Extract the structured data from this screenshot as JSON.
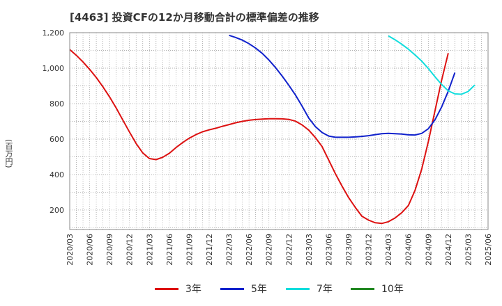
{
  "title": "[4463]  投資CFの12か月移動合計の標準偏差の推移",
  "chart_data": {
    "type": "line",
    "ylabel": "(百万円)",
    "xlabel": "",
    "ylim": [
      90,
      1200
    ],
    "xrange": [
      "2020-03",
      "2025-06"
    ],
    "yticks": [
      {
        "value": 200,
        "label": "200"
      },
      {
        "value": 400,
        "label": "400"
      },
      {
        "value": 600,
        "label": "600"
      },
      {
        "value": 800,
        "label": "800"
      },
      {
        "value": 1000,
        "label": "1,000"
      },
      {
        "value": 1200,
        "label": "1,200"
      }
    ],
    "xticks": [
      "2020/03",
      "2020/06",
      "2020/09",
      "2020/12",
      "2021/03",
      "2021/06",
      "2021/09",
      "2021/12",
      "2022/03",
      "2022/06",
      "2022/09",
      "2022/12",
      "2023/03",
      "2023/06",
      "2023/09",
      "2023/12",
      "2024/03",
      "2024/06",
      "2024/09",
      "2024/12",
      "2025/03",
      "2025/06"
    ],
    "grid": true,
    "legend_position": "bottom",
    "series": [
      {
        "name": "3年",
        "color": "#dd1111",
        "points": [
          [
            "2020-03",
            1105
          ],
          [
            "2020-04",
            1072
          ],
          [
            "2020-05",
            1035
          ],
          [
            "2020-06",
            993
          ],
          [
            "2020-07",
            947
          ],
          [
            "2020-08",
            895
          ],
          [
            "2020-09",
            838
          ],
          [
            "2020-10",
            775
          ],
          [
            "2020-11",
            707
          ],
          [
            "2020-12",
            640
          ],
          [
            "2021-01",
            575
          ],
          [
            "2021-02",
            522
          ],
          [
            "2021-03",
            490
          ],
          [
            "2021-04",
            484
          ],
          [
            "2021-05",
            497
          ],
          [
            "2021-06",
            520
          ],
          [
            "2021-07",
            552
          ],
          [
            "2021-08",
            580
          ],
          [
            "2021-09",
            605
          ],
          [
            "2021-10",
            625
          ],
          [
            "2021-11",
            641
          ],
          [
            "2021-12",
            652
          ],
          [
            "2022-01",
            661
          ],
          [
            "2022-02",
            672
          ],
          [
            "2022-03",
            682
          ],
          [
            "2022-04",
            692
          ],
          [
            "2022-05",
            700
          ],
          [
            "2022-06",
            706
          ],
          [
            "2022-07",
            710
          ],
          [
            "2022-08",
            713
          ],
          [
            "2022-09",
            715
          ],
          [
            "2022-10",
            715
          ],
          [
            "2022-11",
            714
          ],
          [
            "2022-12",
            711
          ],
          [
            "2023-01",
            701
          ],
          [
            "2023-02",
            680
          ],
          [
            "2023-03",
            650
          ],
          [
            "2023-04",
            608
          ],
          [
            "2023-05",
            558
          ],
          [
            "2023-06",
            482
          ],
          [
            "2023-07",
            405
          ],
          [
            "2023-08",
            335
          ],
          [
            "2023-09",
            270
          ],
          [
            "2023-10",
            215
          ],
          [
            "2023-11",
            165
          ],
          [
            "2023-12",
            143
          ],
          [
            "2024-01",
            128
          ],
          [
            "2024-02",
            124
          ],
          [
            "2024-03",
            134
          ],
          [
            "2024-04",
            155
          ],
          [
            "2024-05",
            185
          ],
          [
            "2024-06",
            225
          ],
          [
            "2024-07",
            310
          ],
          [
            "2024-08",
            430
          ],
          [
            "2024-09",
            585
          ],
          [
            "2024-10",
            758
          ],
          [
            "2024-11",
            930
          ],
          [
            "2024-12",
            1085
          ]
        ]
      },
      {
        "name": "5年",
        "color": "#1122cc",
        "points": [
          [
            "2022-03",
            1185
          ],
          [
            "2022-04",
            1173
          ],
          [
            "2022-05",
            1158
          ],
          [
            "2022-06",
            1138
          ],
          [
            "2022-07",
            1113
          ],
          [
            "2022-08",
            1083
          ],
          [
            "2022-09",
            1046
          ],
          [
            "2022-10",
            1003
          ],
          [
            "2022-11",
            955
          ],
          [
            "2022-12",
            903
          ],
          [
            "2023-01",
            848
          ],
          [
            "2023-02",
            786
          ],
          [
            "2023-03",
            718
          ],
          [
            "2023-04",
            670
          ],
          [
            "2023-05",
            637
          ],
          [
            "2023-06",
            617
          ],
          [
            "2023-07",
            610
          ],
          [
            "2023-08",
            610
          ],
          [
            "2023-09",
            610
          ],
          [
            "2023-10",
            612
          ],
          [
            "2023-11",
            615
          ],
          [
            "2023-12",
            619
          ],
          [
            "2024-01",
            625
          ],
          [
            "2024-02",
            630
          ],
          [
            "2024-03",
            632
          ],
          [
            "2024-04",
            630
          ],
          [
            "2024-05",
            628
          ],
          [
            "2024-06",
            624
          ],
          [
            "2024-07",
            623
          ],
          [
            "2024-08",
            632
          ],
          [
            "2024-09",
            658
          ],
          [
            "2024-10",
            708
          ],
          [
            "2024-11",
            780
          ],
          [
            "2024-12",
            870
          ],
          [
            "2025-01",
            975
          ]
        ]
      },
      {
        "name": "7年",
        "color": "#11dddd",
        "points": [
          [
            "2024-03",
            1182
          ],
          [
            "2024-04",
            1160
          ],
          [
            "2024-05",
            1135
          ],
          [
            "2024-06",
            1107
          ],
          [
            "2024-07",
            1075
          ],
          [
            "2024-08",
            1040
          ],
          [
            "2024-09",
            998
          ],
          [
            "2024-10",
            952
          ],
          [
            "2024-11",
            908
          ],
          [
            "2024-12",
            872
          ],
          [
            "2025-01",
            855
          ],
          [
            "2025-02",
            853
          ],
          [
            "2025-03",
            868
          ],
          [
            "2025-04",
            905
          ]
        ]
      },
      {
        "name": "10年",
        "color": "#228822",
        "points": []
      }
    ]
  }
}
